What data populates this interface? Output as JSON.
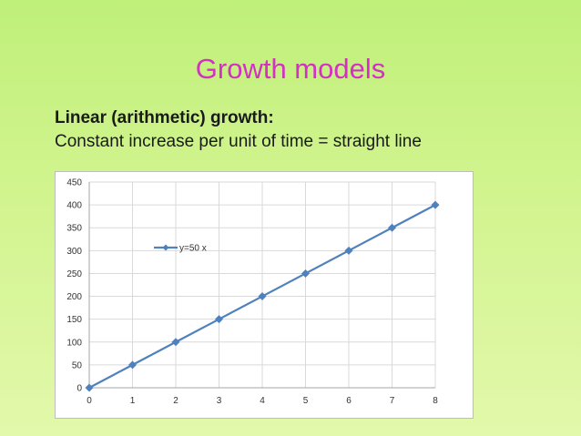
{
  "slide": {
    "title": "Growth models",
    "subtitle": "Linear (arithmetic) growth:",
    "body": "Constant increase per unit of time = straight line"
  },
  "colors": {
    "title": "#d52fc4",
    "series": "#4f81bd",
    "grid": "#d9d9d9"
  },
  "chart_data": {
    "type": "line",
    "x": [
      0,
      1,
      2,
      3,
      4,
      5,
      6,
      7,
      8
    ],
    "series": [
      {
        "name": "y=50 x",
        "values": [
          0,
          50,
          100,
          150,
          200,
          250,
          300,
          350,
          400
        ],
        "marker": "diamond"
      }
    ],
    "xlim": [
      0,
      8
    ],
    "ylim": [
      0,
      450
    ],
    "xticks": [
      "0",
      "1",
      "2",
      "3",
      "4",
      "5",
      "6",
      "7",
      "8"
    ],
    "yticks": [
      "0",
      "50",
      "100",
      "150",
      "200",
      "250",
      "300",
      "350",
      "400",
      "450"
    ],
    "grid": true,
    "legend_position": "upper-left"
  }
}
